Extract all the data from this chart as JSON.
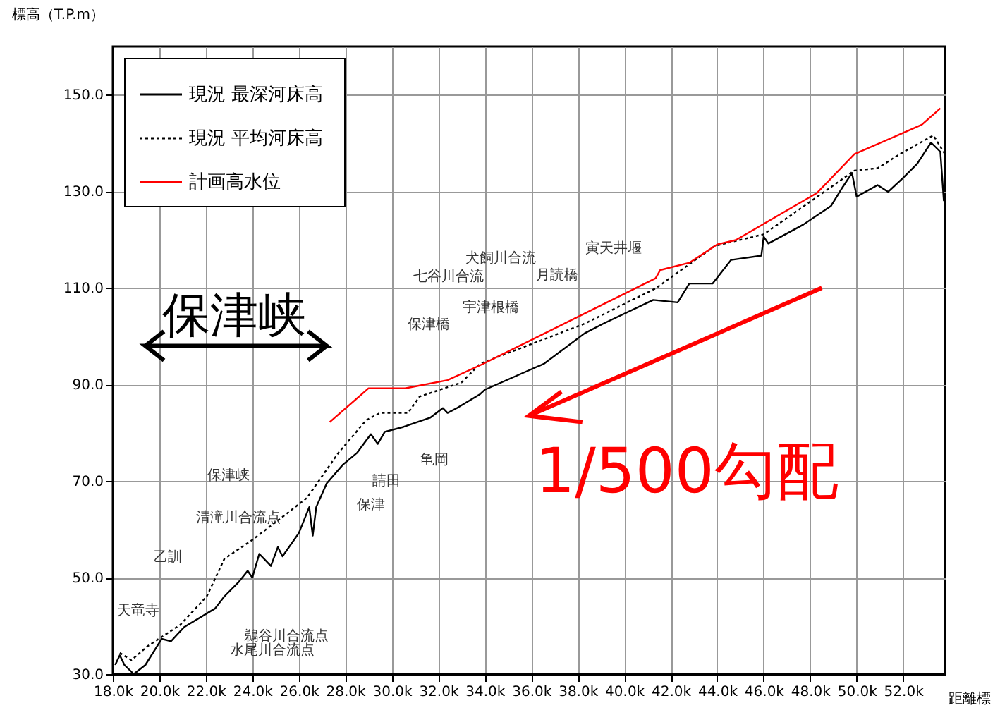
{
  "chart_data": {
    "type": "line",
    "xlabel": "距離標",
    "ylabel": "標高（T.P.m）",
    "xlim": [
      18,
      53.8
    ],
    "ylim": [
      30,
      160
    ],
    "xticks": [
      {
        "value": 18,
        "label": "18.0k"
      },
      {
        "value": 20,
        "label": "20.0k"
      },
      {
        "value": 22,
        "label": "22.0k"
      },
      {
        "value": 24,
        "label": "24.0k"
      },
      {
        "value": 26,
        "label": "26.0k"
      },
      {
        "value": 28,
        "label": "28.0k"
      },
      {
        "value": 30,
        "label": "30.0k"
      },
      {
        "value": 32,
        "label": "32.0k"
      },
      {
        "value": 34,
        "label": "34.0k"
      },
      {
        "value": 36,
        "label": "36.0k"
      },
      {
        "value": 38,
        "label": "38.0k"
      },
      {
        "value": 40,
        "label": "40.0k"
      },
      {
        "value": 42,
        "label": "42.0k"
      },
      {
        "value": 44,
        "label": "44.0k"
      },
      {
        "value": 46,
        "label": "46.0k"
      },
      {
        "value": 48,
        "label": "48.0k"
      },
      {
        "value": 50,
        "label": "50.0k"
      },
      {
        "value": 52,
        "label": "52.0k"
      }
    ],
    "yticks": [
      {
        "value": 30,
        "label": "30.0"
      },
      {
        "value": 50,
        "label": "50.0"
      },
      {
        "value": 70,
        "label": "70.0"
      },
      {
        "value": 90,
        "label": "90.0"
      },
      {
        "value": 110,
        "label": "110.0"
      },
      {
        "value": 130,
        "label": "130.0"
      },
      {
        "value": 150,
        "label": "150.0"
      }
    ],
    "grid": true,
    "legend": "top left",
    "marker": "none",
    "series": [
      {
        "name": "現況  最深河床高",
        "color": "#000000",
        "line_style": "solid",
        "x": [
          18.1,
          18.3,
          18.5,
          18.9,
          19.4,
          20.1,
          20.5,
          21.06,
          22.4,
          22.8,
          23.4,
          23.8,
          24.0,
          24.3,
          24.8,
          25.1,
          25.3,
          26.0,
          26.45,
          26.6,
          26.75,
          27.2,
          27.9,
          28.5,
          29.1,
          29.4,
          29.7,
          30.5,
          31.65,
          32.2,
          32.4,
          32.8,
          33.8,
          34.0,
          36.55,
          38.3,
          39.1,
          41.25,
          42.3,
          42.8,
          43.8,
          44.6,
          45.9,
          46.0,
          46.2,
          47.7,
          48.9,
          49.4,
          49.8,
          50.0,
          50.9,
          51.35,
          52.0,
          52.6,
          53.2,
          53.6,
          53.75
        ],
        "values": [
          31.9,
          33.9,
          31.9,
          30.0,
          31.9,
          37.3,
          36.8,
          39.7,
          43.6,
          46.1,
          49.0,
          51.4,
          50.0,
          54.9,
          52.4,
          56.3,
          54.4,
          59.2,
          64.6,
          58.7,
          64.6,
          69.5,
          73.4,
          75.8,
          79.7,
          77.7,
          80.2,
          81.2,
          83.1,
          85.1,
          84.1,
          85.1,
          88.0,
          88.9,
          94.3,
          100.6,
          102.6,
          107.5,
          107.0,
          110.9,
          110.9,
          115.8,
          116.7,
          120.6,
          119.2,
          123.1,
          127.0,
          130.9,
          133.8,
          128.9,
          131.3,
          129.9,
          132.8,
          135.7,
          140.1,
          138.2,
          128.0
        ]
      },
      {
        "name": "現況  平均河床高",
        "color": "#000000",
        "line_style": "dotted",
        "x": [
          18.3,
          18.8,
          19.5,
          20.9,
          22.04,
          22.8,
          24.0,
          25.2,
          26.35,
          27.7,
          28.9,
          29.5,
          30.7,
          31.2,
          33.0,
          33.8,
          38.3,
          41.35,
          43.9,
          46.0,
          48.9,
          49.9,
          50.9,
          51.85,
          53.3,
          53.8
        ],
        "values": [
          34.4,
          32.9,
          35.8,
          40.2,
          46.1,
          53.9,
          57.8,
          62.2,
          66.5,
          75.8,
          82.6,
          84.1,
          84.1,
          87.5,
          90.4,
          94.3,
          102.6,
          109.9,
          118.7,
          121.1,
          130.9,
          134.3,
          134.8,
          137.7,
          141.6,
          137.7
        ]
      },
      {
        "name": "計画高水位",
        "color": "#ff0000",
        "line_style": "solid",
        "x": [
          27.33,
          29.0,
          30.57,
          32.4,
          33.9,
          41.35,
          41.55,
          42.8,
          44.0,
          44.8,
          48.3,
          49.9,
          52.8,
          53.6
        ],
        "values": [
          82.2,
          89.2,
          89.2,
          90.9,
          94.2,
          112.0,
          113.7,
          115.2,
          119.0,
          119.9,
          129.7,
          137.7,
          143.8,
          147.2
        ]
      }
    ],
    "annotations": [
      "天竜寺",
      "乙訓",
      "清滝川合流点",
      "保津峡",
      "鵜谷川合流点",
      "水尾川合流点",
      "保津",
      "請田",
      "亀岡",
      "保津橋",
      "七谷川合流",
      "犬飼川合流",
      "宇津根橋",
      "月読橋",
      "寅天井堰",
      "保津峡",
      "1/500勾配"
    ]
  }
}
